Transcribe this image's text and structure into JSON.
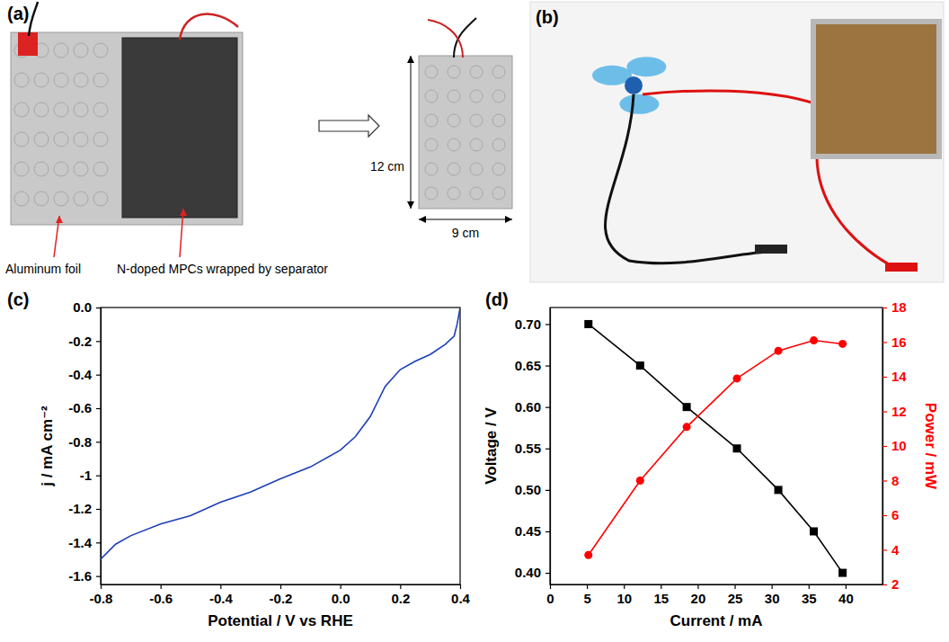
{
  "figure": {
    "a": {
      "letter": "(a)",
      "labels": [
        "Aluminum foil",
        "N-doped MPCs wrapped by separator"
      ],
      "height": "12 cm",
      "width": "9 cm"
    },
    "b": {
      "letter": "(b)"
    }
  },
  "chart_data": [
    {
      "type": "line",
      "annotation": "(c)",
      "x_label": "Potential / V vs RHE",
      "y_label": "j / mA cm⁻²",
      "x": [
        -0.8,
        -0.75,
        -0.7,
        -0.6,
        -0.5,
        -0.4,
        -0.3,
        -0.2,
        -0.1,
        0.0,
        0.05,
        0.1,
        0.15,
        0.2,
        0.25,
        0.3,
        0.35,
        0.38,
        0.39,
        0.4
      ],
      "values": [
        -1.5,
        -1.41,
        -1.36,
        -1.29,
        -1.24,
        -1.16,
        -1.1,
        -1.02,
        -0.95,
        -0.85,
        -0.77,
        -0.65,
        -0.47,
        -0.37,
        -0.32,
        -0.28,
        -0.22,
        -0.17,
        -0.1,
        0.0
      ],
      "color": "#1c3fb8",
      "xlim": [
        -0.8,
        0.4
      ],
      "ylim": [
        -1.65,
        0.0
      ],
      "xticks": [
        -0.8,
        -0.6,
        -0.4,
        -0.2,
        {
          "value": 0,
          "label": "0.0"
        },
        0.2,
        0.4
      ],
      "yticks": [
        -1.6,
        -1.4,
        -1.2,
        -1,
        -0.8,
        -0.6,
        -0.4,
        -0.2,
        {
          "value": 0,
          "label": "0.0"
        }
      ]
    },
    {
      "type": "line",
      "annotation": "(d)",
      "x_label": "Current / mA",
      "y_label": "Voltage / V",
      "y2_label": "Power / mW",
      "x": [
        5.2,
        12.2,
        18.5,
        25.3,
        30.9,
        35.7,
        39.6
      ],
      "series": [
        {
          "values": [
            0.7,
            0.65,
            0.6,
            0.55,
            0.5,
            0.45,
            0.4
          ],
          "color": "#000000",
          "marker": "square"
        },
        {
          "values": [
            3.7,
            8.0,
            11.1,
            13.9,
            15.5,
            16.1,
            15.9
          ],
          "color": "#ff0000",
          "marker": "circle",
          "axis": "y2"
        }
      ],
      "xlim": [
        0,
        45
      ],
      "ylim": [
        0.386,
        0.72
      ],
      "y2lim": [
        2,
        18
      ],
      "xticks": [
        0,
        5,
        10,
        15,
        20,
        25,
        30,
        35,
        40
      ],
      "yticks": [
        {
          "value": 0.4,
          "label": "0.40"
        },
        0.45,
        {
          "value": 0.5,
          "label": "0.50"
        },
        0.55,
        {
          "value": 0.6,
          "label": "0.60"
        },
        0.65,
        {
          "value": 0.7,
          "label": "0.70"
        }
      ],
      "y2ticks": [
        2,
        4,
        6,
        8,
        10,
        12,
        14,
        16,
        18
      ]
    }
  ]
}
